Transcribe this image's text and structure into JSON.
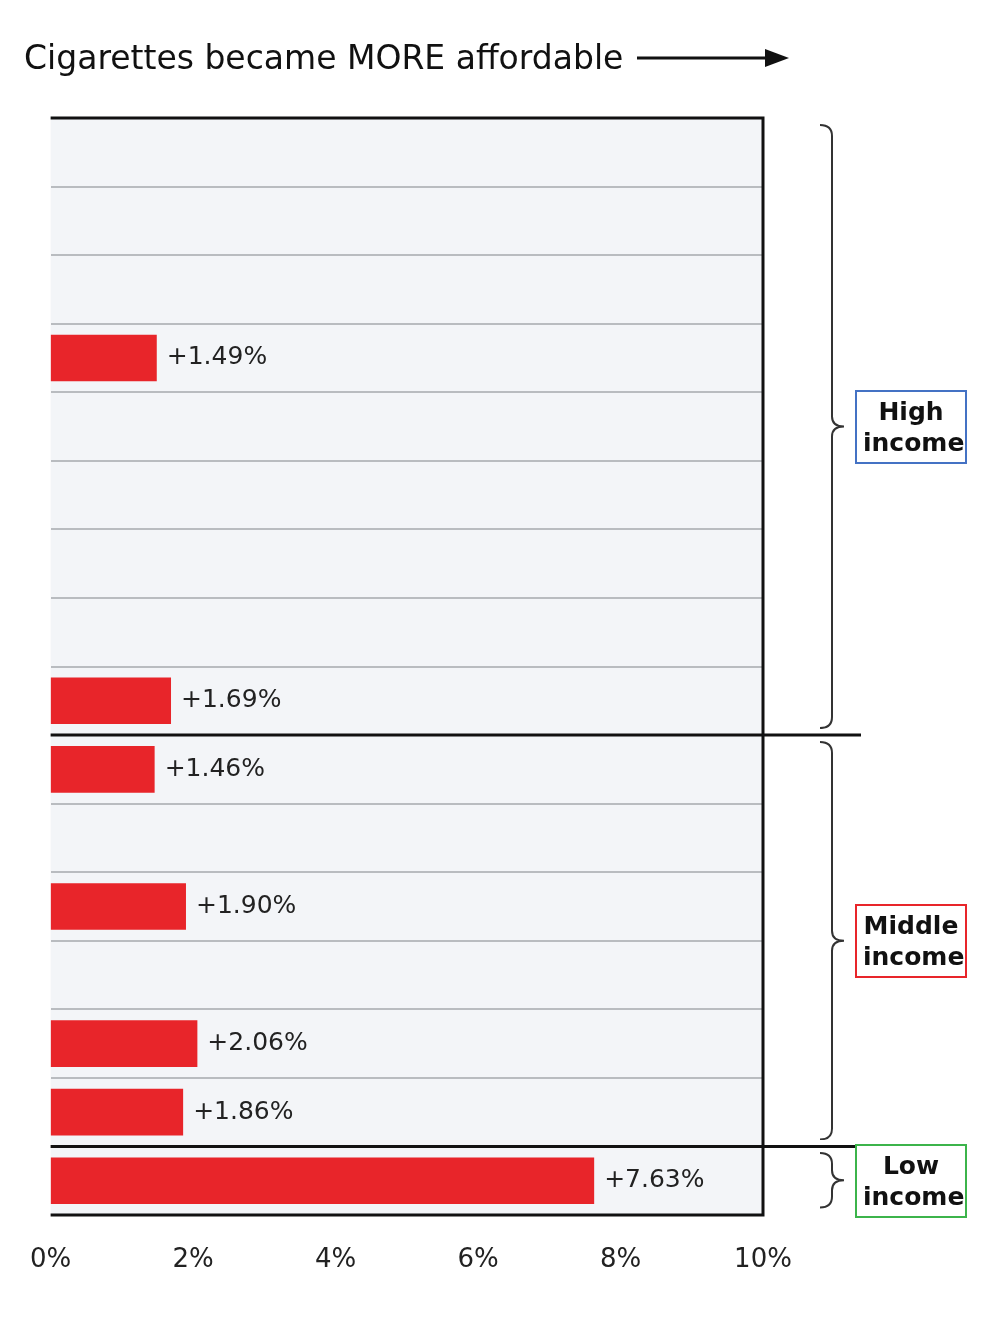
{
  "chart_data": {
    "type": "bar",
    "orientation": "horizontal",
    "title": "Cigarettes became MORE affordable",
    "categories": [
      null,
      null,
      null,
      null,
      null,
      null,
      null,
      null,
      null,
      null,
      null,
      null,
      null,
      null,
      null,
      null
    ],
    "values": [
      null,
      null,
      null,
      1.49,
      null,
      null,
      null,
      null,
      1.69,
      1.46,
      null,
      1.9,
      null,
      2.06,
      1.86,
      7.63
    ],
    "value_labels": [
      null,
      null,
      null,
      "+1.49%",
      null,
      null,
      null,
      null,
      "+1.69%",
      "+1.46%",
      null,
      "+1.90%",
      null,
      "+2.06%",
      "+1.86%",
      "+7.63%"
    ],
    "color": "#e8252a",
    "xlim": [
      0,
      10
    ],
    "xticks": [
      {
        "value": 0,
        "label": "0%"
      },
      {
        "value": 2,
        "label": "2%"
      },
      {
        "value": 4,
        "label": "4%"
      },
      {
        "value": 6,
        "label": "6%"
      },
      {
        "value": 8,
        "label": "8%"
      },
      {
        "value": 10,
        "label": "10%"
      }
    ],
    "grid": "y",
    "annotations": [
      "High income",
      "Middle income",
      "Low income"
    ]
  }
}
